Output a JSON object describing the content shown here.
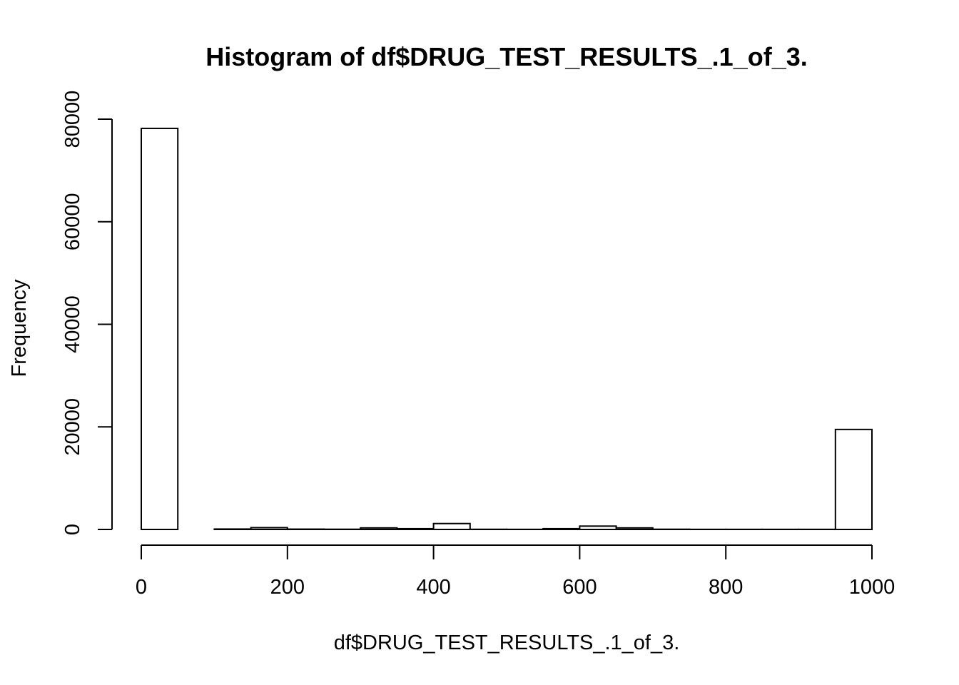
{
  "chart_data": {
    "type": "bar",
    "title": "Histogram of df$DRUG_TEST_RESULTS_.1_of_3.",
    "xlabel": "df$DRUG_TEST_RESULTS_.1_of_3.",
    "ylabel": "Frequency",
    "xlim": [
      0,
      1000
    ],
    "ylim": [
      0,
      80000
    ],
    "x_ticks": [
      0,
      200,
      400,
      600,
      800,
      1000
    ],
    "y_ticks": [
      0,
      20000,
      40000,
      60000,
      80000
    ],
    "bin_width": 50,
    "bins": [
      {
        "start": 0,
        "end": 50,
        "count": 78200
      },
      {
        "start": 50,
        "end": 100,
        "count": 0
      },
      {
        "start": 100,
        "end": 150,
        "count": 80
      },
      {
        "start": 150,
        "end": 200,
        "count": 350
      },
      {
        "start": 200,
        "end": 250,
        "count": 60
      },
      {
        "start": 250,
        "end": 300,
        "count": 40
      },
      {
        "start": 300,
        "end": 350,
        "count": 300
      },
      {
        "start": 350,
        "end": 400,
        "count": 150
      },
      {
        "start": 400,
        "end": 450,
        "count": 1150
      },
      {
        "start": 450,
        "end": 500,
        "count": 30
      },
      {
        "start": 500,
        "end": 550,
        "count": 20
      },
      {
        "start": 550,
        "end": 600,
        "count": 150
      },
      {
        "start": 600,
        "end": 650,
        "count": 650
      },
      {
        "start": 650,
        "end": 700,
        "count": 300
      },
      {
        "start": 700,
        "end": 750,
        "count": 40
      },
      {
        "start": 750,
        "end": 800,
        "count": 20
      },
      {
        "start": 800,
        "end": 850,
        "count": 20
      },
      {
        "start": 850,
        "end": 900,
        "count": 20
      },
      {
        "start": 900,
        "end": 950,
        "count": 20
      },
      {
        "start": 950,
        "end": 1000,
        "count": 19500
      }
    ]
  }
}
